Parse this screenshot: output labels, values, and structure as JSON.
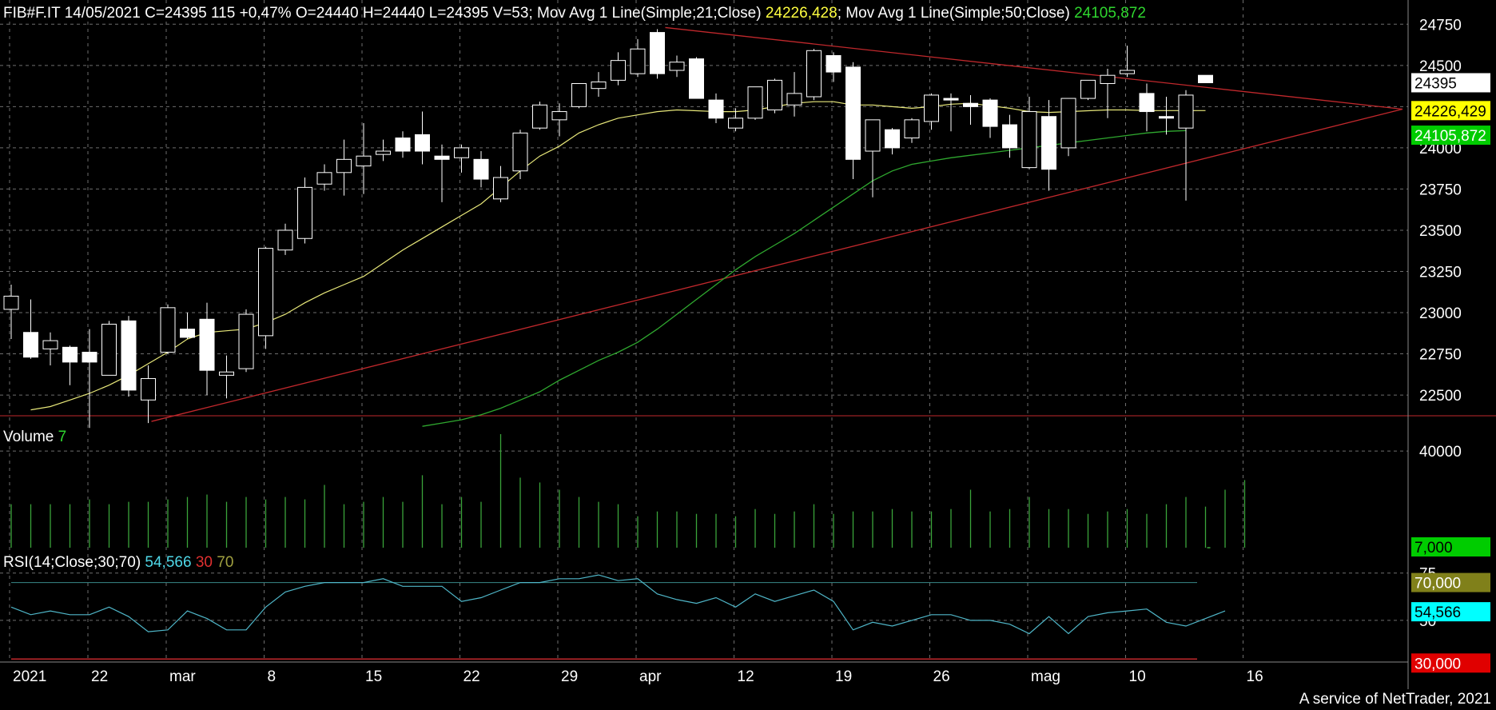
{
  "header": {
    "symbol_info": "FIB#F.IT 14/05/2021 C=24395 115 +0,47% O=24440 H=24440 L=24395 V=53",
    "ma1_label": "; Mov Avg 1 Line(Simple;21;Close) ",
    "ma1_value": "24226,428",
    "ma2_label": "; Mov Avg 1 Line(Simple;50;Close) ",
    "ma2_value": "24105,872"
  },
  "volume_header": {
    "label": "Volume ",
    "value": "7"
  },
  "rsi_header": {
    "label": "RSI(14;Close;30;70) ",
    "value": "54,566",
    "low": "30",
    "high": "70"
  },
  "credit": "A service of NetTrader, 2021",
  "price_tags": {
    "last": "24395",
    "ma21": "24226,429",
    "ma50": "24105,872",
    "volume": "7,000",
    "rsi_high": "70,000",
    "rsi": "54,566",
    "rsi_low": "30,000"
  },
  "colors": {
    "background": "#000000",
    "grid": "#6e6e6e",
    "candle": "#ffffff",
    "ma21": "#e8e87a",
    "ma50": "#2fa82f",
    "trendline": "#c0282c",
    "volume": "#3aa43a",
    "rsi": "#4fb6c8",
    "rsi_high_tag": "#80801a",
    "rsi_tag": "#00ffff",
    "rsi_low_tag": "#e00000",
    "ma21_tag": "#ffff00",
    "ma50_tag": "#00cc00",
    "label_green": "#2fd62f",
    "label_yellow": "#ffff40"
  },
  "chart_data": {
    "type": "candlestick",
    "price_axis": {
      "ticks": [
        "24750",
        "24500",
        "24250",
        "24000",
        "23750",
        "23500",
        "23250",
        "23000",
        "22750",
        "22500"
      ],
      "ylim": [
        22350,
        24800
      ]
    },
    "volume_axis": {
      "ticks": [
        "40000"
      ],
      "ylim": [
        0,
        48000
      ]
    },
    "rsi_axis": {
      "ticks": [
        "75",
        "50"
      ],
      "ylim": [
        28,
        77
      ],
      "levels": [
        30,
        70
      ]
    },
    "x_labels": [
      "2021",
      "22",
      "mar",
      "8",
      "15",
      "22",
      "29",
      "apr",
      "12",
      "19",
      "26",
      "mag",
      "10",
      "16"
    ],
    "x_label_index": [
      0,
      4,
      8,
      13,
      18,
      23,
      28,
      32,
      37,
      42,
      47,
      52,
      57,
      63
    ],
    "candles": [
      {
        "o": 23020,
        "h": 23170,
        "l": 22840,
        "c": 23100
      },
      {
        "o": 22880,
        "h": 23080,
        "l": 22720,
        "c": 22730
      },
      {
        "o": 22780,
        "h": 22880,
        "l": 22680,
        "c": 22830
      },
      {
        "o": 22790,
        "h": 22800,
        "l": 22560,
        "c": 22700
      },
      {
        "o": 22760,
        "h": 22900,
        "l": 22300,
        "c": 22700
      },
      {
        "o": 22620,
        "h": 22950,
        "l": 22620,
        "c": 22930
      },
      {
        "o": 22950,
        "h": 22980,
        "l": 22490,
        "c": 22530
      },
      {
        "o": 22470,
        "h": 22680,
        "l": 22330,
        "c": 22600
      },
      {
        "o": 22760,
        "h": 23050,
        "l": 22750,
        "c": 23030
      },
      {
        "o": 22900,
        "h": 23000,
        "l": 22840,
        "c": 22850
      },
      {
        "o": 22960,
        "h": 23060,
        "l": 22500,
        "c": 22650
      },
      {
        "o": 22620,
        "h": 22740,
        "l": 22480,
        "c": 22640
      },
      {
        "o": 22660,
        "h": 23020,
        "l": 22640,
        "c": 22990
      },
      {
        "o": 22860,
        "h": 23400,
        "l": 22780,
        "c": 23390
      },
      {
        "o": 23380,
        "h": 23540,
        "l": 23350,
        "c": 23500
      },
      {
        "o": 23450,
        "h": 23820,
        "l": 23420,
        "c": 23760
      },
      {
        "o": 23780,
        "h": 23900,
        "l": 23740,
        "c": 23850
      },
      {
        "o": 23850,
        "h": 24050,
        "l": 23710,
        "c": 23930
      },
      {
        "o": 23890,
        "h": 24150,
        "l": 23720,
        "c": 23950
      },
      {
        "o": 23960,
        "h": 24050,
        "l": 23920,
        "c": 23980
      },
      {
        "o": 24060,
        "h": 24100,
        "l": 23940,
        "c": 23980
      },
      {
        "o": 24080,
        "h": 24220,
        "l": 23900,
        "c": 23980
      },
      {
        "o": 23950,
        "h": 24020,
        "l": 23670,
        "c": 23930
      },
      {
        "o": 23940,
        "h": 24020,
        "l": 23850,
        "c": 24000
      },
      {
        "o": 23930,
        "h": 23980,
        "l": 23760,
        "c": 23810
      },
      {
        "o": 23690,
        "h": 23890,
        "l": 23670,
        "c": 23820
      },
      {
        "o": 23860,
        "h": 24110,
        "l": 23810,
        "c": 24090
      },
      {
        "o": 24120,
        "h": 24280,
        "l": 24110,
        "c": 24260
      },
      {
        "o": 24170,
        "h": 24270,
        "l": 24070,
        "c": 24220
      },
      {
        "o": 24250,
        "h": 24390,
        "l": 24240,
        "c": 24390
      },
      {
        "o": 24360,
        "h": 24460,
        "l": 24310,
        "c": 24400
      },
      {
        "o": 24410,
        "h": 24580,
        "l": 24380,
        "c": 24530
      },
      {
        "o": 24450,
        "h": 24660,
        "l": 24430,
        "c": 24600
      },
      {
        "o": 24700,
        "h": 24720,
        "l": 24420,
        "c": 24450
      },
      {
        "o": 24470,
        "h": 24560,
        "l": 24430,
        "c": 24520
      },
      {
        "o": 24540,
        "h": 24550,
        "l": 24300,
        "c": 24300
      },
      {
        "o": 24290,
        "h": 24330,
        "l": 24150,
        "c": 24180
      },
      {
        "o": 24120,
        "h": 24240,
        "l": 24100,
        "c": 24180
      },
      {
        "o": 24180,
        "h": 24370,
        "l": 24170,
        "c": 24370
      },
      {
        "o": 24230,
        "h": 24420,
        "l": 24210,
        "c": 24410
      },
      {
        "o": 24260,
        "h": 24460,
        "l": 24190,
        "c": 24330
      },
      {
        "o": 24310,
        "h": 24600,
        "l": 24290,
        "c": 24590
      },
      {
        "o": 24560,
        "h": 24580,
        "l": 24400,
        "c": 24460
      },
      {
        "o": 24490,
        "h": 24520,
        "l": 23810,
        "c": 23930
      },
      {
        "o": 23980,
        "h": 24160,
        "l": 23700,
        "c": 24170
      },
      {
        "o": 24110,
        "h": 24120,
        "l": 23960,
        "c": 24000
      },
      {
        "o": 24060,
        "h": 24180,
        "l": 24030,
        "c": 24170
      },
      {
        "o": 24160,
        "h": 24330,
        "l": 24110,
        "c": 24320
      },
      {
        "o": 24300,
        "h": 24330,
        "l": 24100,
        "c": 24290
      },
      {
        "o": 24270,
        "h": 24320,
        "l": 24140,
        "c": 24250
      },
      {
        "o": 24290,
        "h": 24300,
        "l": 24060,
        "c": 24130
      },
      {
        "o": 24140,
        "h": 24200,
        "l": 23940,
        "c": 24000
      },
      {
        "o": 23880,
        "h": 24310,
        "l": 23870,
        "c": 24220
      },
      {
        "o": 24190,
        "h": 24290,
        "l": 23740,
        "c": 23870
      },
      {
        "o": 24000,
        "h": 24300,
        "l": 23950,
        "c": 24300
      },
      {
        "o": 24300,
        "h": 24410,
        "l": 24290,
        "c": 24410
      },
      {
        "o": 24390,
        "h": 24480,
        "l": 24180,
        "c": 24440
      },
      {
        "o": 24450,
        "h": 24620,
        "l": 24430,
        "c": 24470
      },
      {
        "o": 24330,
        "h": 24390,
        "l": 24100,
        "c": 24220
      },
      {
        "o": 24190,
        "h": 24310,
        "l": 24080,
        "c": 24180
      },
      {
        "o": 24120,
        "h": 24350,
        "l": 23680,
        "c": 24320
      },
      {
        "o": 24440,
        "h": 24440,
        "l": 24395,
        "c": 24395
      }
    ],
    "ma21": [
      22410,
      22430,
      22470,
      22510,
      22560,
      22620,
      22690,
      22760,
      22840,
      22880,
      22890,
      22900,
      22940,
      22990,
      23060,
      23120,
      23170,
      23220,
      23300,
      23380,
      23450,
      23520,
      23590,
      23660,
      23760,
      23860,
      23950,
      24010,
      24090,
      24140,
      24180,
      24200,
      24220,
      24230,
      24225,
      24220,
      24220,
      24230,
      24250,
      24270,
      24280,
      24280,
      24260,
      24260,
      24250,
      24240,
      24250,
      24265,
      24270,
      24255,
      24240,
      24220,
      24215,
      24220,
      24225,
      24230,
      24230,
      24226,
      24226,
      24226,
      24226
    ],
    "ma50": [
      22310,
      22330,
      22350,
      22380,
      22420,
      22470,
      22520,
      22590,
      22650,
      22710,
      22760,
      22820,
      22900,
      22990,
      23080,
      23170,
      23260,
      23340,
      23410,
      23480,
      23560,
      23640,
      23720,
      23800,
      23860,
      23900,
      23920,
      23940,
      23955,
      23970,
      23985,
      24000,
      24015,
      24030,
      24045,
      24060,
      24075,
      24090,
      24100,
      24105
    ],
    "volume": [
      18000,
      18000,
      18000,
      18000,
      20000,
      18000,
      19000,
      19000,
      20000,
      21000,
      22000,
      19000,
      21000,
      20000,
      21000,
      20000,
      26000,
      18000,
      19000,
      21000,
      19000,
      30000,
      18000,
      21000,
      19000,
      47000,
      29000,
      27000,
      24000,
      21000,
      19000,
      18000,
      13000,
      15000,
      15000,
      14000,
      14000,
      13000,
      16000,
      14000,
      15000,
      18000,
      14000,
      15000,
      15000,
      16000,
      15000,
      15000,
      16000,
      24000,
      15000,
      16000,
      21000,
      16000,
      16000,
      14000,
      15000,
      16000,
      14000,
      18000,
      21000,
      17000,
      24000,
      28000
    ],
    "rsi": [
      57,
      53,
      55,
      53,
      53,
      57,
      52,
      44,
      45,
      55,
      51,
      45,
      45,
      57,
      65,
      68,
      70,
      70,
      70,
      72,
      68,
      68,
      68,
      60,
      62,
      66,
      70,
      70,
      72,
      72,
      74,
      71,
      72,
      64,
      61,
      59,
      62,
      57,
      64,
      60,
      63,
      66,
      60,
      45,
      49,
      47,
      50,
      53,
      53,
      50,
      50,
      48,
      43,
      52,
      43,
      52,
      54,
      55,
      56,
      49,
      47,
      51,
      55
    ]
  }
}
